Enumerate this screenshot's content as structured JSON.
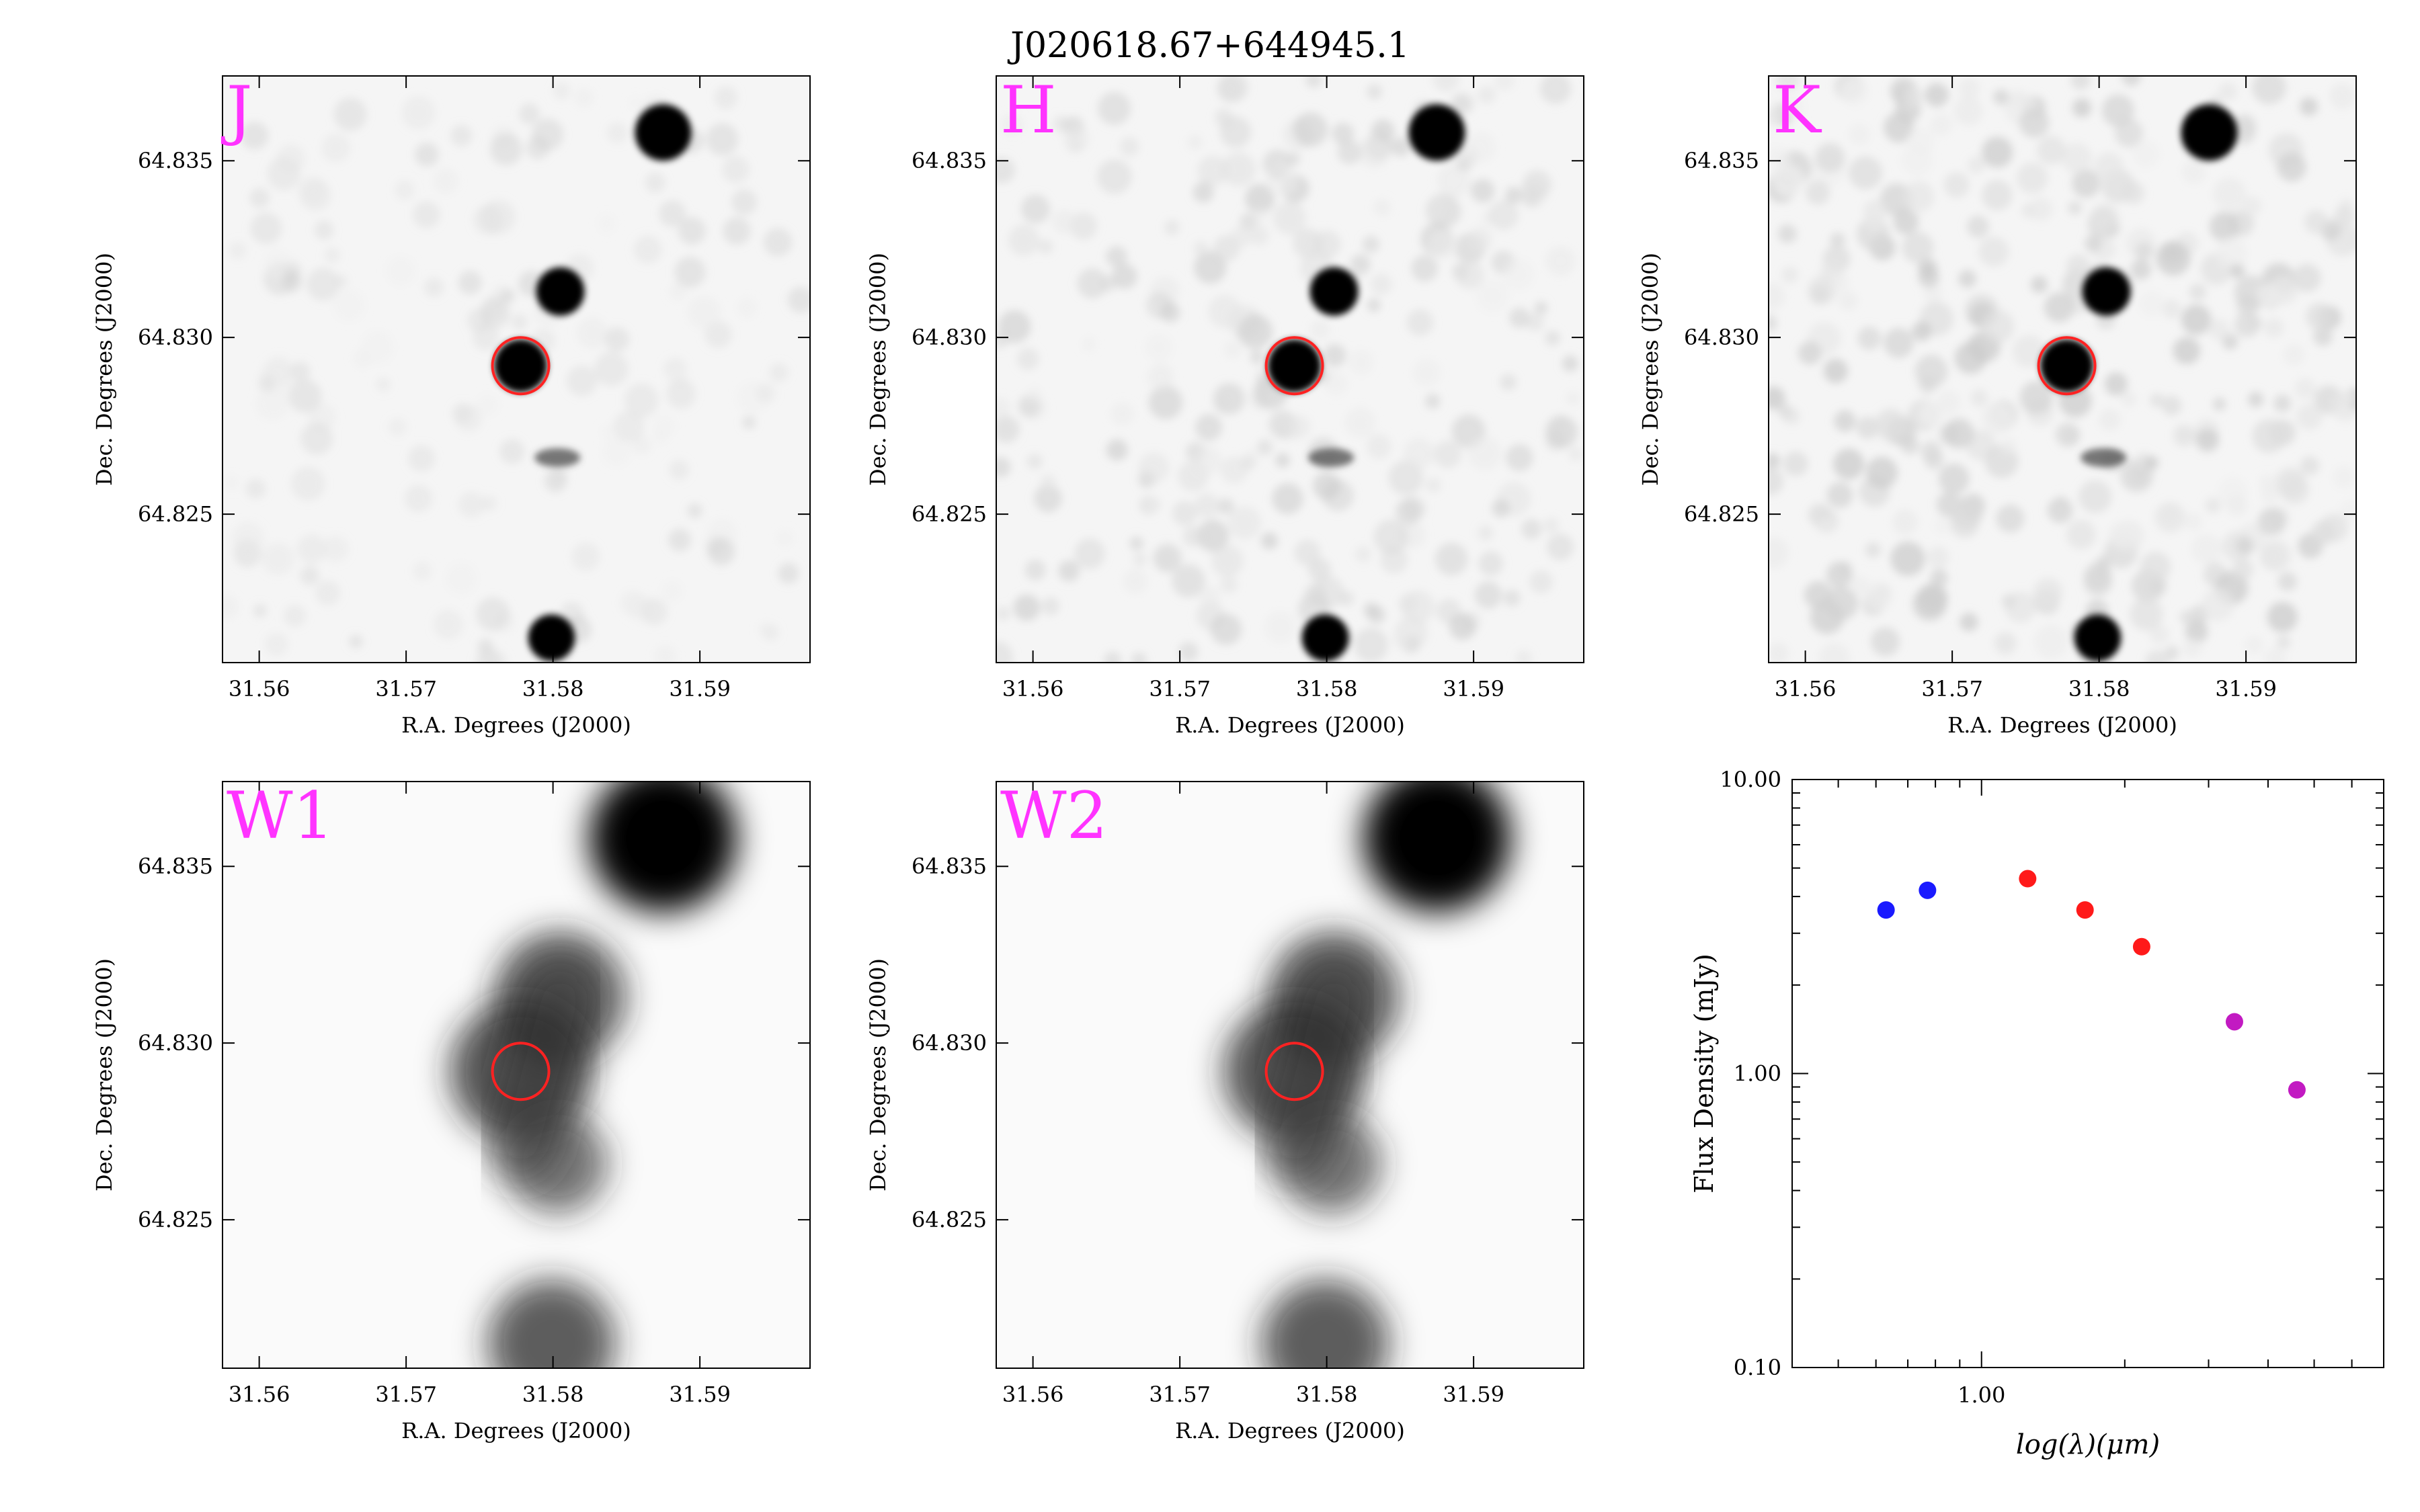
{
  "title": "J020618.67+644945.1",
  "colors": {
    "band_label": "#ff33ff",
    "marker_circle": "#ff2222",
    "sed_blue": "#1a1aff",
    "sed_red": "#ff1a1a",
    "sed_magenta": "#c21ac2"
  },
  "image_axes": {
    "xlabel": "R.A. Degrees (J2000)",
    "ylabel": "Dec. Degrees (J2000)",
    "xlim": [
      31.5575,
      31.5975
    ],
    "ylim": [
      64.8208,
      64.8374
    ],
    "xticks": [
      31.56,
      31.57,
      31.58,
      31.59
    ],
    "xtick_labels": [
      "31.56",
      "31.57",
      "31.58",
      "31.59"
    ],
    "yticks": [
      64.825,
      64.83,
      64.835
    ],
    "ytick_labels": [
      "64.825",
      "64.830",
      "64.835"
    ],
    "target": {
      "ra": 31.5778,
      "dec": 64.8292
    }
  },
  "panels": [
    {
      "band": "J",
      "style": "nir",
      "noise": 0.35
    },
    {
      "band": "H",
      "style": "nir",
      "noise": 0.7
    },
    {
      "band": "K",
      "style": "nir",
      "noise": 1.0
    },
    {
      "band": "W1",
      "style": "wise",
      "noise": 0
    },
    {
      "band": "W2",
      "style": "wise",
      "noise": 0
    }
  ],
  "sources": [
    {
      "ra": 31.5875,
      "dec": 64.8358,
      "flux": 1.0
    },
    {
      "ra": 31.5805,
      "dec": 64.8313,
      "flux": 0.75
    },
    {
      "ra": 31.5778,
      "dec": 64.8292,
      "flux": 0.9
    },
    {
      "ra": 31.5803,
      "dec": 64.8266,
      "flux": 0.3
    },
    {
      "ra": 31.5799,
      "dec": 64.8215,
      "flux": 0.7
    }
  ],
  "chart_data": {
    "type": "scatter",
    "title": "",
    "xlabel": "log(λ)(μm)",
    "ylabel": "Flux Density (mJy)",
    "xscale": "log",
    "yscale": "log",
    "xlim": [
      0.4,
      7.0
    ],
    "ylim": [
      0.1,
      10.0
    ],
    "xticks": [
      1.0
    ],
    "xtick_labels": [
      "1.00"
    ],
    "yticks": [
      0.1,
      1.0,
      10.0
    ],
    "ytick_labels": [
      "0.10",
      "1.00",
      "10.00"
    ],
    "grid": false,
    "points": [
      {
        "x": 0.63,
        "y": 3.6,
        "color": "#1a1aff"
      },
      {
        "x": 0.77,
        "y": 4.2,
        "color": "#1a1aff"
      },
      {
        "x": 1.25,
        "y": 4.6,
        "color": "#ff1a1a"
      },
      {
        "x": 1.65,
        "y": 3.6,
        "color": "#ff1a1a"
      },
      {
        "x": 2.17,
        "y": 2.7,
        "color": "#ff1a1a"
      },
      {
        "x": 3.4,
        "y": 1.5,
        "color": "#c21ac2"
      },
      {
        "x": 4.6,
        "y": 0.88,
        "color": "#c21ac2"
      }
    ]
  }
}
